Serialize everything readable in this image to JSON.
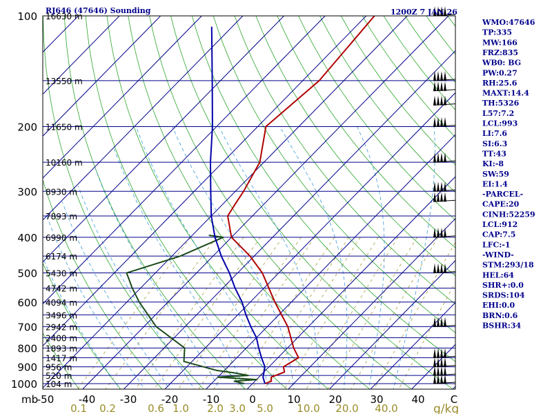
{
  "header": {
    "station": "RJ646 (47646) Sounding",
    "time": "1200Z  7 JAN 26"
  },
  "indices": [
    "WMO:47646",
    "TP:335",
    "MW:166",
    "FRZ:835",
    "WB0: BG",
    "PW:0.27",
    "RH:25.6",
    "MAXT:14.4",
    "TH:5326",
    "L57:7.2",
    "LCL:993",
    "LI:7.6",
    "SI:6.3",
    "TT:43",
    "KI:-8",
    "SW:59",
    "EI:1.4",
    "-PARCEL-",
    "CAPE:20",
    "CINH:52259",
    "LCL:912",
    "CAP:7.5",
    "LFC:-1",
    "-WIND-",
    "STM:293/18",
    "HEL:64",
    "SHR+:0.0",
    "SRDS:104",
    "EHI:0.0",
    "BRN:0.6",
    "BSHR:34"
  ],
  "chart_data": {
    "type": "line",
    "chart_kind": "skew-T log-P sounding",
    "pressure_axis": {
      "unit": "mb",
      "ticks": [
        100,
        200,
        300,
        400,
        500,
        600,
        700,
        800,
        900,
        1000
      ],
      "range": [
        100,
        1000
      ],
      "scale": "log"
    },
    "temperature_axis": {
      "ticks": [
        -50,
        -40,
        -30,
        -20,
        -10,
        0,
        10,
        20,
        30,
        40
      ],
      "range": [
        -50,
        50
      ],
      "end_label": "C"
    },
    "mixing_ratio_axis": {
      "unit": "g/kg",
      "ticks": [
        "0.1",
        "0.2",
        "0.6",
        "1.0",
        "2.0",
        "3.0",
        "5.0",
        "10.0",
        "20.0",
        "40.0"
      ]
    },
    "height_labels": [
      {
        "p": 100,
        "label": "16630 m"
      },
      {
        "p": 150,
        "label": "13550 m"
      },
      {
        "p": 200,
        "label": "11650 m"
      },
      {
        "p": 250,
        "label": "10160 m"
      },
      {
        "p": 300,
        "label": "8930 m"
      },
      {
        "p": 350,
        "label": "7893 m"
      },
      {
        "p": 400,
        "label": "6990 m"
      },
      {
        "p": 450,
        "label": "6174 m"
      },
      {
        "p": 500,
        "label": "5430 m"
      },
      {
        "p": 550,
        "label": "4742 m"
      },
      {
        "p": 600,
        "label": "4094 m"
      },
      {
        "p": 650,
        "label": "3496 m"
      },
      {
        "p": 700,
        "label": "2942 m"
      },
      {
        "p": 750,
        "label": "2400 m"
      },
      {
        "p": 800,
        "label": "1893 m"
      },
      {
        "p": 850,
        "label": "1417 m"
      },
      {
        "p": 900,
        "label": "956 m"
      },
      {
        "p": 950,
        "label": "520 m"
      },
      {
        "p": 1000,
        "label": "104 m"
      }
    ],
    "series": [
      {
        "role": "temperature",
        "color": "#b00000",
        "points": [
          [
            1000,
            3
          ],
          [
            985,
            4
          ],
          [
            960,
            3
          ],
          [
            930,
            5
          ],
          [
            900,
            3.5
          ],
          [
            850,
            5
          ],
          [
            800,
            1.5
          ],
          [
            700,
            -5
          ],
          [
            600,
            -14
          ],
          [
            500,
            -24
          ],
          [
            450,
            -31
          ],
          [
            400,
            -40
          ],
          [
            350,
            -46
          ],
          [
            325,
            -47
          ],
          [
            300,
            -48
          ],
          [
            250,
            -51
          ],
          [
            200,
            -58
          ],
          [
            150,
            -56
          ],
          [
            100,
            -58
          ],
          [
            96,
            -60
          ]
        ]
      },
      {
        "role": "dewpoint",
        "color": "#1a4a1a",
        "points": [
          [
            1000,
            -2
          ],
          [
            985,
            -5
          ],
          [
            975,
            0
          ],
          [
            960,
            -10
          ],
          [
            950,
            -3
          ],
          [
            935,
            -7
          ],
          [
            920,
            -12
          ],
          [
            870,
            -22
          ],
          [
            800,
            -25
          ],
          [
            700,
            -37
          ],
          [
            600,
            -47
          ],
          [
            550,
            -52
          ],
          [
            500,
            -57
          ],
          [
            450,
            -48
          ],
          [
            400,
            -42
          ],
          [
            395,
            -46
          ]
        ]
      },
      {
        "role": "parcel",
        "color": "#0000aa",
        "points": [
          [
            1000,
            3
          ],
          [
            960,
            1
          ],
          [
            930,
            0
          ],
          [
            900,
            -1
          ],
          [
            850,
            -4
          ],
          [
            800,
            -7
          ],
          [
            750,
            -10
          ],
          [
            700,
            -14
          ],
          [
            650,
            -18
          ],
          [
            600,
            -22
          ],
          [
            550,
            -27
          ],
          [
            500,
            -32
          ],
          [
            450,
            -38
          ],
          [
            400,
            -44
          ],
          [
            350,
            -50
          ],
          [
            300,
            -56
          ],
          [
            250,
            -63
          ],
          [
            200,
            -71
          ],
          [
            150,
            -82
          ],
          [
            107,
            -95
          ]
        ]
      }
    ],
    "wind_barb_levels": [
      100,
      150,
      160,
      175,
      200,
      250,
      300,
      320,
      400,
      500,
      700,
      850,
      900,
      950,
      1000
    ]
  },
  "colors": {
    "isobar": "#00008b",
    "isotherm": "#00008b",
    "dry_adiabat": "#2aa52a",
    "moist_adiabat": "#3a9ad9",
    "mixing_ratio": "#a89a38",
    "frame": "#000000"
  }
}
